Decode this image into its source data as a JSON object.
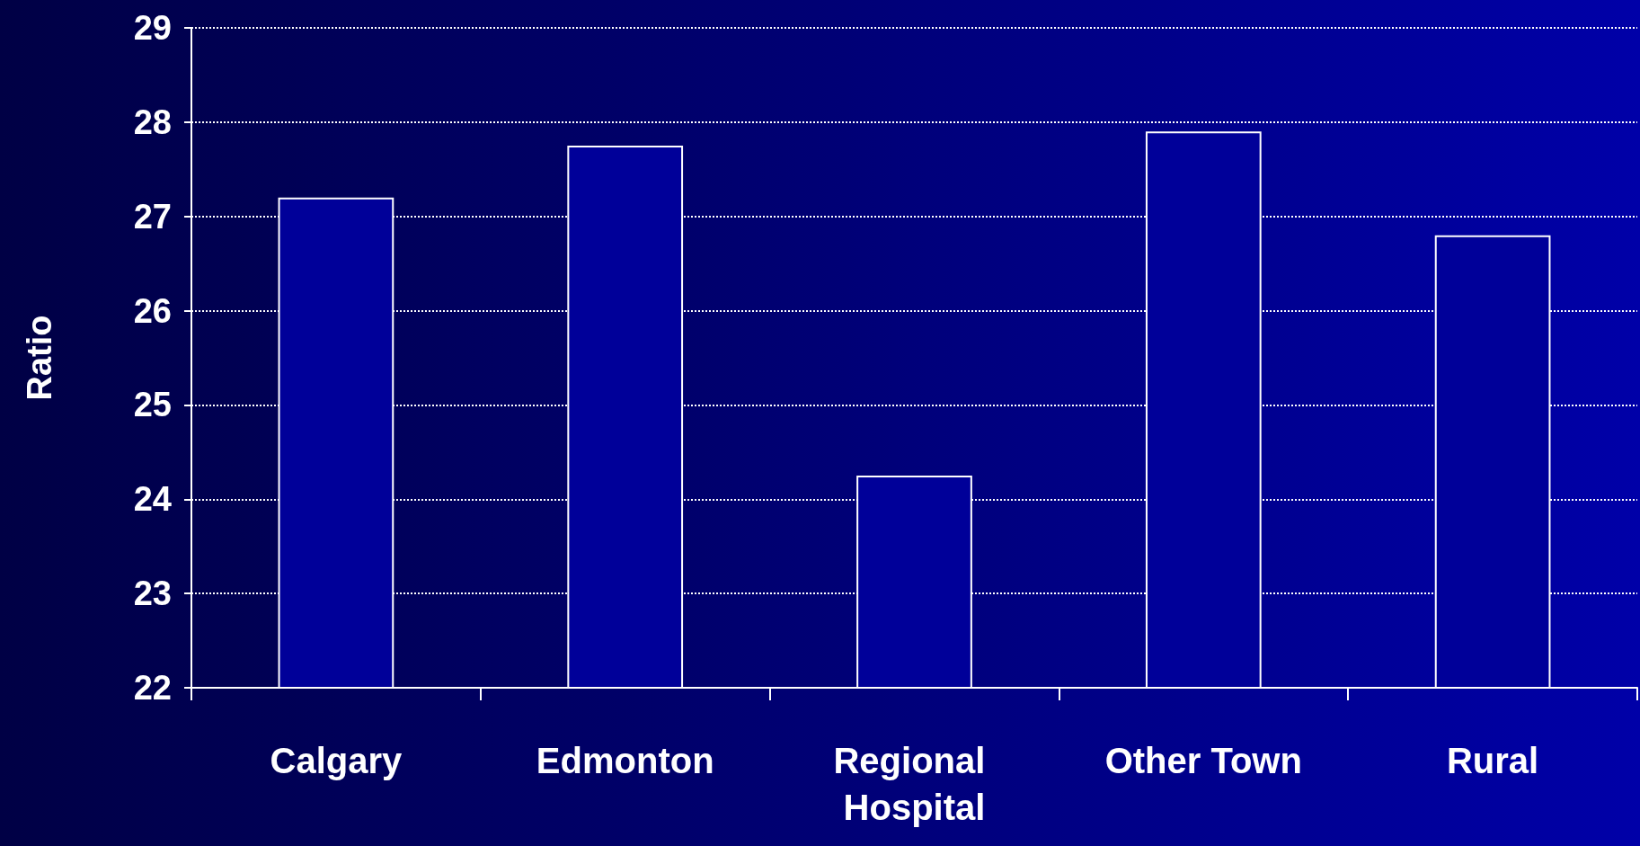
{
  "chart_data": {
    "type": "bar",
    "ylabel": "Ratio",
    "categories": [
      "Calgary",
      "Edmonton",
      "Regional Hospital",
      "Other Town",
      "Rural"
    ],
    "values": [
      27.2,
      27.75,
      24.25,
      27.9,
      26.8
    ],
    "color": "#000099",
    "ylim": [
      22,
      29
    ],
    "yticks": [
      22,
      23,
      24,
      25,
      26,
      27,
      28,
      29
    ],
    "grid": "y"
  }
}
